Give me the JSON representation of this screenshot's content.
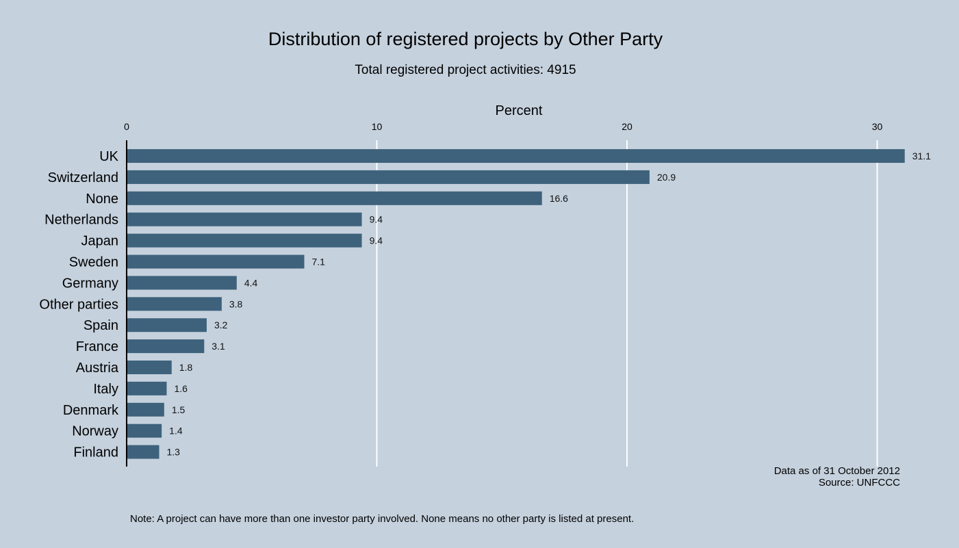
{
  "chart_data": {
    "type": "bar",
    "orientation": "horizontal",
    "title": "Distribution of registered projects by Other Party",
    "subtitle": "Total registered project activities: 4915",
    "xlabel": "Percent",
    "ylabel": "",
    "xlim": [
      0,
      32
    ],
    "xticks": [
      0,
      10,
      20,
      30
    ],
    "grid": true,
    "categories": [
      "UK",
      "Switzerland",
      "None",
      "Netherlands",
      "Japan",
      "Sweden",
      "Germany",
      "Other parties",
      "Spain",
      "France",
      "Austria",
      "Italy",
      "Denmark",
      "Norway",
      "Finland"
    ],
    "values": [
      31.1,
      20.9,
      16.6,
      9.4,
      9.4,
      7.1,
      4.4,
      3.8,
      3.2,
      3.1,
      1.8,
      1.6,
      1.5,
      1.4,
      1.3
    ],
    "value_labels": [
      "31.1",
      "20.9",
      "16.6",
      "9.4",
      "9.4",
      "7.1",
      "4.4",
      "3.8",
      "3.2",
      "3.1",
      "1.8",
      "1.6",
      "1.5",
      "1.4",
      "1.3"
    ],
    "bar_color": "#3e627c",
    "grid_color": "#ffffff",
    "background_color": "#c5d1dd"
  },
  "notes": {
    "date": "Data as of 31 October 2012",
    "source": "Source: UNFCCC",
    "footnote": "Note: A project can have more than one investor party involved. None means no other party is listed at present."
  }
}
